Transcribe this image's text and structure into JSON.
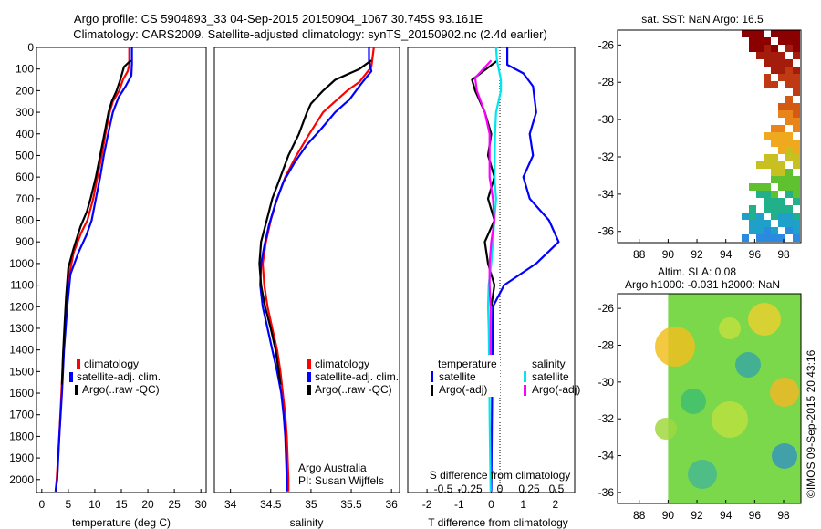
{
  "header": {
    "title_line1": "Argo profile: CS 5904893_33 04-Sep-2015 20150904_1067 30.745S 93.161E",
    "title_line2": "Climatology: CARS2009. Satellite-adjusted climatology: synTS_20150902.nc (2.4d earlier)"
  },
  "colors": {
    "climatology": "#ff0000",
    "satellite": "#0000ff",
    "argo": "#000000",
    "sal_satellite": "#00e5ee",
    "sal_argo": "#ff00ff"
  },
  "chart_data": [
    {
      "id": "temperature",
      "type": "line",
      "xlabel": "temperature (deg C)",
      "xlim": [
        -1,
        31
      ],
      "xticks": [
        0,
        5,
        10,
        15,
        20,
        25,
        30
      ],
      "ylim": [
        0,
        2060
      ],
      "yticks": [
        0,
        100,
        200,
        300,
        400,
        500,
        600,
        700,
        800,
        900,
        1000,
        1100,
        1200,
        1300,
        1400,
        1500,
        1600,
        1700,
        1800,
        1900,
        2000
      ],
      "legend": [
        "climatology",
        "satellite-adj. clim.",
        "Argo(..raw -QC)"
      ],
      "series": [
        {
          "name": "climatology",
          "color": "#ff0000",
          "points": [
            [
              16.5,
              0
            ],
            [
              16.5,
              80
            ],
            [
              16.2,
              110
            ],
            [
              15.3,
              150
            ],
            [
              14.6,
              200
            ],
            [
              13.4,
              250
            ],
            [
              12.8,
              300
            ],
            [
              12.0,
              400
            ],
            [
              11.3,
              500
            ],
            [
              10.5,
              600
            ],
            [
              9.7,
              700
            ],
            [
              8.6,
              800
            ],
            [
              7.4,
              860
            ],
            [
              6.0,
              950
            ],
            [
              5.2,
              1050
            ],
            [
              4.6,
              1200
            ],
            [
              4.1,
              1400
            ],
            [
              3.7,
              1600
            ],
            [
              3.3,
              1800
            ],
            [
              2.8,
              2000
            ],
            [
              2.6,
              2055
            ]
          ]
        },
        {
          "name": "satellite-adj. clim.",
          "color": "#0000ff",
          "points": [
            [
              17.0,
              0
            ],
            [
              17.0,
              80
            ],
            [
              16.9,
              130
            ],
            [
              15.8,
              180
            ],
            [
              14.5,
              230
            ],
            [
              13.4,
              300
            ],
            [
              12.5,
              400
            ],
            [
              11.7,
              500
            ],
            [
              11.0,
              600
            ],
            [
              10.2,
              700
            ],
            [
              9.4,
              800
            ],
            [
              8.4,
              870
            ],
            [
              6.9,
              950
            ],
            [
              5.4,
              1050
            ],
            [
              4.8,
              1200
            ],
            [
              4.2,
              1400
            ],
            [
              3.8,
              1600
            ],
            [
              3.3,
              1800
            ],
            [
              2.9,
              2000
            ],
            [
              2.6,
              2055
            ]
          ]
        },
        {
          "name": "Argo(..raw -QC)",
          "color": "#000000",
          "points": [
            [
              16.8,
              60
            ],
            [
              15.5,
              90
            ],
            [
              14.8,
              150
            ],
            [
              14.1,
              200
            ],
            [
              13.2,
              250
            ],
            [
              12.6,
              300
            ],
            [
              11.8,
              400
            ],
            [
              11.0,
              500
            ],
            [
              10.2,
              600
            ],
            [
              9.2,
              700
            ],
            [
              8.5,
              760
            ],
            [
              7.3,
              830
            ],
            [
              6.0,
              930
            ],
            [
              5.0,
              1020
            ],
            [
              4.6,
              1150
            ],
            [
              4.3,
              1280
            ],
            [
              4.0,
              1420
            ],
            [
              3.8,
              1560
            ]
          ]
        }
      ]
    },
    {
      "id": "salinity",
      "type": "line",
      "xlabel": "salinity",
      "xlim": [
        33.8,
        36.1
      ],
      "xticks": [
        34,
        34.5,
        35,
        35.5,
        36
      ],
      "xtick_labels": [
        "34",
        "34.5",
        "35",
        "35.5",
        "36"
      ],
      "ylim": [
        0,
        2060
      ],
      "legend": [
        "climatology",
        "satellite-adj. clim.",
        "Argo(..raw -QC)"
      ],
      "annotation": [
        "Argo Australia",
        "PI: Susan Wijffels"
      ],
      "series": [
        {
          "name": "climatology",
          "color": "#ff0000",
          "points": [
            [
              35.78,
              0
            ],
            [
              35.75,
              90
            ],
            [
              35.6,
              160
            ],
            [
              35.45,
              200
            ],
            [
              35.3,
              250
            ],
            [
              35.15,
              300
            ],
            [
              34.98,
              400
            ],
            [
              34.82,
              500
            ],
            [
              34.68,
              600
            ],
            [
              34.58,
              700
            ],
            [
              34.5,
              800
            ],
            [
              34.44,
              900
            ],
            [
              34.4,
              1000
            ],
            [
              34.42,
              1100
            ],
            [
              34.46,
              1200
            ],
            [
              34.52,
              1300
            ],
            [
              34.58,
              1400
            ],
            [
              34.62,
              1500
            ],
            [
              34.65,
              1600
            ],
            [
              34.68,
              1700
            ],
            [
              34.7,
              1800
            ],
            [
              34.72,
              2000
            ],
            [
              34.72,
              2055
            ]
          ]
        },
        {
          "name": "satellite-adj. clim.",
          "color": "#0000ff",
          "points": [
            [
              35.72,
              0
            ],
            [
              35.72,
              60
            ],
            [
              35.75,
              110
            ],
            [
              35.62,
              170
            ],
            [
              35.48,
              240
            ],
            [
              35.3,
              300
            ],
            [
              35.12,
              380
            ],
            [
              34.95,
              450
            ],
            [
              34.8,
              530
            ],
            [
              34.66,
              620
            ],
            [
              34.56,
              720
            ],
            [
              34.48,
              820
            ],
            [
              34.42,
              920
            ],
            [
              34.38,
              1000
            ],
            [
              34.37,
              1100
            ],
            [
              34.4,
              1200
            ],
            [
              34.46,
              1300
            ],
            [
              34.52,
              1400
            ],
            [
              34.58,
              1500
            ],
            [
              34.63,
              1600
            ],
            [
              34.66,
              1700
            ],
            [
              34.68,
              1800
            ],
            [
              34.7,
              2000
            ],
            [
              34.7,
              2055
            ]
          ]
        },
        {
          "name": "Argo(..raw -QC)",
          "color": "#000000",
          "points": [
            [
              35.75,
              60
            ],
            [
              35.6,
              100
            ],
            [
              35.3,
              150
            ],
            [
              35.15,
              200
            ],
            [
              35.0,
              260
            ],
            [
              34.95,
              300
            ],
            [
              34.85,
              400
            ],
            [
              34.72,
              500
            ],
            [
              34.62,
              600
            ],
            [
              34.52,
              700
            ],
            [
              34.45,
              800
            ],
            [
              34.38,
              900
            ],
            [
              34.36,
              1000
            ],
            [
              34.38,
              1100
            ],
            [
              34.43,
              1200
            ],
            [
              34.5,
              1300
            ],
            [
              34.56,
              1400
            ],
            [
              34.6,
              1500
            ],
            [
              34.62,
              1560
            ]
          ]
        }
      ]
    },
    {
      "id": "difference",
      "type": "line",
      "xlabel": "T difference from climatology",
      "xlabel_top": "S difference from climatology",
      "xlim": [
        -2.6,
        2.6
      ],
      "xticks": [
        -2,
        -1,
        0,
        1,
        2
      ],
      "top_ticks": [
        "-0.5",
        "-0.25",
        "0",
        "0.25",
        "0.5"
      ],
      "ylim": [
        0,
        2060
      ],
      "legend_headers": [
        "temperature",
        "salinity"
      ],
      "legend": [
        "satellite",
        "Argo(-adj)",
        "satellite",
        "Argo(-adj)"
      ],
      "series": [
        {
          "name": "satellite",
          "group": "temperature",
          "color": "#0000ff",
          "points": [
            [
              0.5,
              0
            ],
            [
              0.5,
              80
            ],
            [
              1.0,
              120
            ],
            [
              1.3,
              180
            ],
            [
              1.4,
              300
            ],
            [
              1.2,
              400
            ],
            [
              1.3,
              500
            ],
            [
              1.0,
              600
            ],
            [
              1.2,
              700
            ],
            [
              1.8,
              800
            ],
            [
              2.1,
              900
            ],
            [
              1.4,
              1000
            ],
            [
              0.4,
              1100
            ],
            [
              0.05,
              1200
            ],
            [
              0.0,
              2055
            ]
          ]
        },
        {
          "name": "Argo(-adj)",
          "group": "temperature",
          "color": "#000000",
          "points": [
            [
              0.2,
              60
            ],
            [
              -0.6,
              150
            ],
            [
              -0.5,
              200
            ],
            [
              -0.2,
              300
            ],
            [
              0.0,
              400
            ],
            [
              -0.1,
              500
            ],
            [
              0.1,
              600
            ],
            [
              -0.1,
              700
            ],
            [
              0.1,
              800
            ],
            [
              -0.2,
              900
            ],
            [
              -0.1,
              1000
            ],
            [
              0.1,
              1100
            ],
            [
              0.0,
              1200
            ]
          ]
        },
        {
          "name": "satellite",
          "group": "salinity",
          "color": "#00e5ee",
          "points": [
            [
              0.15,
              0
            ],
            [
              0.18,
              60
            ],
            [
              0.3,
              150
            ],
            [
              0.3,
              200
            ],
            [
              0.15,
              300
            ],
            [
              0.12,
              400
            ],
            [
              0.1,
              600
            ],
            [
              0.15,
              700
            ],
            [
              0.1,
              800
            ],
            [
              0.05,
              900
            ],
            [
              0.0,
              1000
            ],
            [
              -0.08,
              1100
            ],
            [
              -0.1,
              1200
            ],
            [
              -0.08,
              1300
            ],
            [
              -0.06,
              1500
            ],
            [
              -0.05,
              1700
            ],
            [
              -0.02,
              2055
            ]
          ]
        },
        {
          "name": "Argo(-adj)",
          "group": "salinity",
          "color": "#ff00ff",
          "points": [
            [
              0.0,
              60
            ],
            [
              -0.5,
              140
            ],
            [
              -0.45,
              200
            ],
            [
              -0.2,
              300
            ],
            [
              -0.05,
              400
            ],
            [
              -0.05,
              600
            ],
            [
              0.05,
              700
            ],
            [
              0.1,
              800
            ],
            [
              0.0,
              900
            ],
            [
              -0.05,
              1000
            ],
            [
              -0.05,
              1100
            ],
            [
              -0.02,
              1200
            ],
            [
              -0.02,
              1300
            ],
            [
              -0.02,
              1400
            ],
            [
              -0.02,
              1500
            ],
            [
              -0.02,
              1560
            ]
          ]
        }
      ]
    },
    {
      "id": "sst_map",
      "type": "heatmap",
      "title": "sat. SST: NaN Argo: 16.5",
      "xticks": [
        88,
        90,
        92,
        94,
        96,
        98
      ],
      "yticks": [
        -26,
        -28,
        -30,
        -32,
        -34,
        -36
      ],
      "float_position": {
        "lon": 93.161,
        "lat": -30.745
      }
    },
    {
      "id": "sla_map",
      "type": "heatmap",
      "title_line1": "Altim. SLA: 0.08",
      "title_line2": "Argo h1000: -0.031 h2000: NaN",
      "xticks": [
        88,
        90,
        92,
        94,
        96,
        98
      ],
      "yticks": [
        -26,
        -28,
        -30,
        -32,
        -34,
        -36
      ]
    }
  ],
  "footer_stamp": "©IMOS 09-Sep-2015 20:43:16"
}
